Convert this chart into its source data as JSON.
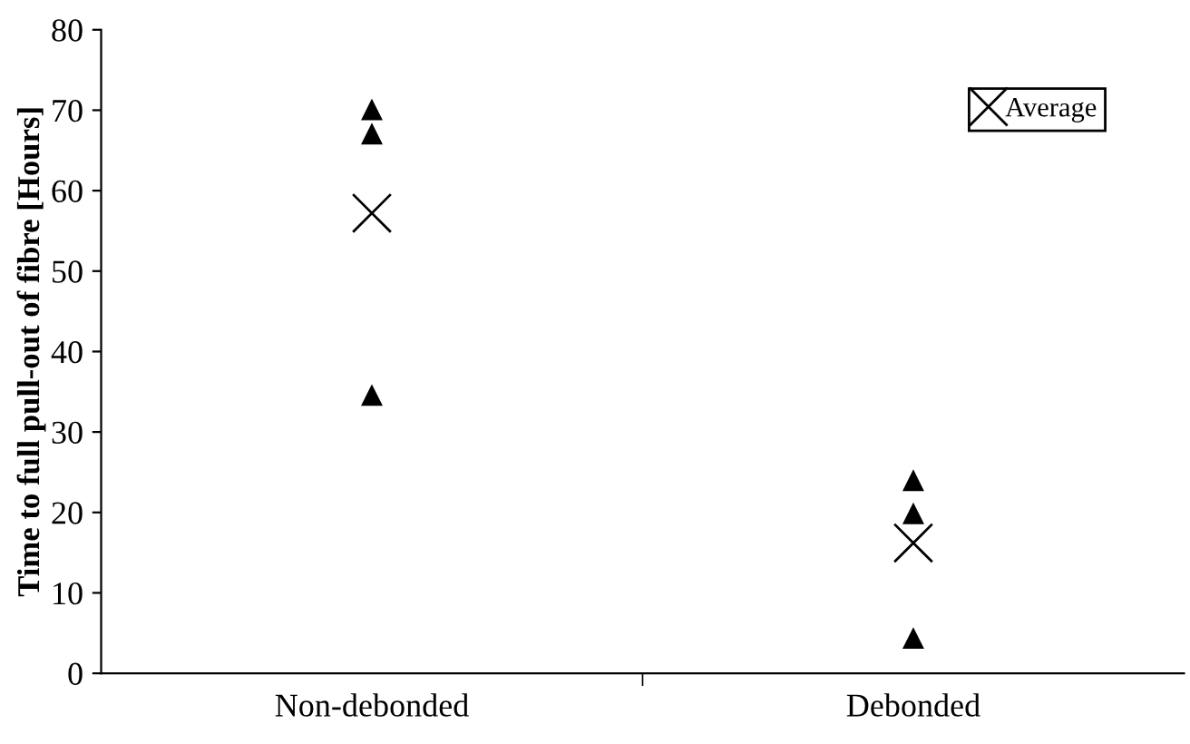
{
  "chart_data": {
    "type": "scatter",
    "ylabel": "Time to full pull-out of fibre [Hours]",
    "categories": [
      "Non-debonded",
      "Debonded"
    ],
    "series": [
      {
        "color": "#000000",
        "marker": "triangle",
        "values": [
          70.0,
          23.9
        ]
      },
      {
        "color": "#000000",
        "marker": "triangle",
        "values": [
          67.0,
          19.8
        ]
      },
      {
        "color": "#000000",
        "marker": "triangle",
        "values": [
          34.5,
          4.3
        ]
      },
      {
        "name": "Average",
        "color": "#000000",
        "marker": "cross",
        "values": [
          57.2,
          16.2
        ]
      }
    ],
    "ylim": [
      0,
      80
    ],
    "yticks": [
      0,
      10,
      20,
      30,
      40,
      50,
      60,
      70,
      80
    ],
    "grid": false,
    "legend": "top right"
  }
}
